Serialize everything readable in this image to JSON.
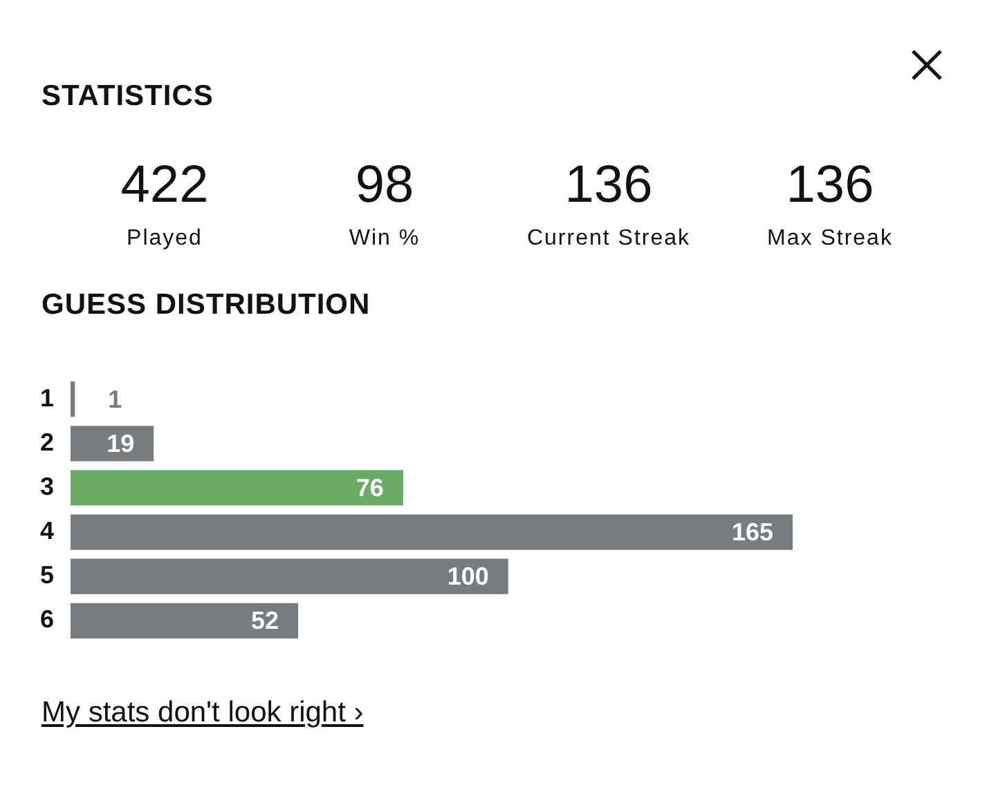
{
  "chart_data": [
    {
      "type": "other",
      "title": "STATISTICS",
      "annotations": [
        "422",
        "Played",
        "98",
        "Win %",
        "136",
        "Current Streak",
        "136",
        "Max Streak"
      ]
    },
    {
      "type": "bar",
      "orientation": "horizontal",
      "title": "GUESS DISTRIBUTION",
      "categories": [
        "1",
        "2",
        "3",
        "4",
        "5",
        "6"
      ],
      "values": [
        1,
        19,
        76,
        165,
        100,
        52
      ],
      "colors": [
        "#787c7e",
        "#787c7e",
        "#6aaa64",
        "#787c7e",
        "#787c7e",
        "#787c7e"
      ],
      "data_labels": true,
      "legend": false,
      "tick_labels": "y",
      "annotations": [
        "My stats don't look right ›"
      ]
    }
  ]
}
